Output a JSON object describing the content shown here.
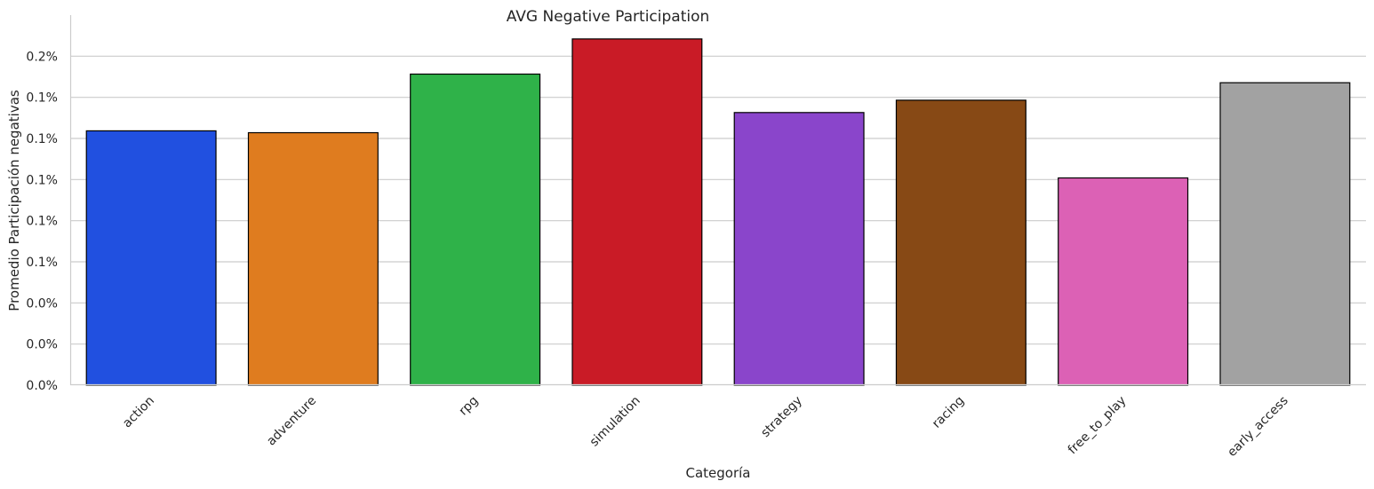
{
  "chart_data": {
    "type": "bar",
    "title": "AVG Negative Participation",
    "xlabel": "Categoría",
    "ylabel": "Promedio Participación negativas",
    "categories": [
      "action",
      "adventure",
      "rpg",
      "simulation",
      "strategy",
      "racing",
      "free_to_play",
      "early_access"
    ],
    "values": [
      0.1237,
      0.1228,
      0.1513,
      0.1684,
      0.1326,
      0.1386,
      0.1008,
      0.1471
    ],
    "colors": [
      "#2150e0",
      "#df7c1f",
      "#2fb249",
      "#c91b26",
      "#8a45cb",
      "#874915",
      "#dc61b5",
      "#a2a2a2"
    ],
    "ylim": [
      0,
      0.18
    ],
    "yticks": [
      0,
      0.02,
      0.04,
      0.06,
      0.08,
      0.1,
      0.12,
      0.14,
      0.16
    ],
    "ytick_labels": [
      "0.0%",
      "0.0%",
      "0.0%",
      "0.1%",
      "0.1%",
      "0.1%",
      "0.1%",
      "0.1%",
      "0.2%"
    ],
    "grid": "horizontal",
    "bar_edge_color": "#000000"
  }
}
